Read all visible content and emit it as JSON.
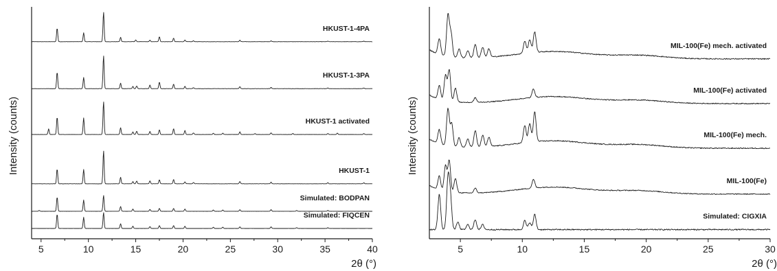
{
  "chart_data": [
    {
      "type": "line",
      "title": "",
      "xlabel": "2θ (°)",
      "ylabel": "Intensity (counts)",
      "xlim": [
        4,
        40
      ],
      "xticks": [
        5,
        10,
        15,
        20,
        25,
        30,
        35,
        40
      ],
      "grid": false,
      "legend": "none",
      "series": [
        {
          "name": "HKUST-1-4PA",
          "baseline": 0.86,
          "height": 0.13,
          "peaks": [
            [
              6.7,
              0.46
            ],
            [
              9.5,
              0.3
            ],
            [
              11.6,
              1.0
            ],
            [
              13.4,
              0.15
            ],
            [
              15.0,
              0.06
            ],
            [
              16.5,
              0.05
            ],
            [
              17.5,
              0.17
            ],
            [
              19.0,
              0.12
            ],
            [
              20.2,
              0.06
            ],
            [
              21.1,
              0.03
            ],
            [
              26.0,
              0.05
            ],
            [
              29.3,
              0.03
            ],
            [
              35.3,
              0.02
            ],
            [
              39.1,
              0.02
            ]
          ]
        },
        {
          "name": "HKUST-1-3PA",
          "baseline": 0.655,
          "height": 0.145,
          "peaks": [
            [
              6.7,
              0.5
            ],
            [
              9.5,
              0.34
            ],
            [
              11.6,
              1.0
            ],
            [
              13.4,
              0.17
            ],
            [
              14.7,
              0.07
            ],
            [
              15.1,
              0.08
            ],
            [
              16.5,
              0.11
            ],
            [
              17.5,
              0.2
            ],
            [
              19.0,
              0.14
            ],
            [
              20.2,
              0.07
            ],
            [
              21.1,
              0.03
            ],
            [
              26.0,
              0.06
            ],
            [
              29.3,
              0.04
            ],
            [
              35.3,
              0.02
            ],
            [
              39.1,
              0.02
            ]
          ]
        },
        {
          "name": "HKUST-1 activated",
          "baseline": 0.455,
          "height": 0.145,
          "peaks": [
            [
              5.8,
              0.17
            ],
            [
              6.7,
              0.53
            ],
            [
              9.5,
              0.5
            ],
            [
              11.6,
              1.0
            ],
            [
              13.4,
              0.21
            ],
            [
              14.7,
              0.08
            ],
            [
              15.1,
              0.1
            ],
            [
              16.5,
              0.09
            ],
            [
              17.5,
              0.14
            ],
            [
              19.0,
              0.18
            ],
            [
              20.2,
              0.12
            ],
            [
              21.1,
              0.05
            ],
            [
              23.2,
              0.04
            ],
            [
              24.2,
              0.04
            ],
            [
              26.0,
              0.08
            ],
            [
              27.6,
              0.03
            ],
            [
              29.3,
              0.05
            ],
            [
              31.6,
              0.03
            ],
            [
              35.3,
              0.03
            ],
            [
              36.3,
              0.04
            ],
            [
              39.1,
              0.03
            ]
          ]
        },
        {
          "name": "HKUST-1",
          "baseline": 0.24,
          "height": 0.145,
          "peaks": [
            [
              6.7,
              0.45
            ],
            [
              9.5,
              0.43
            ],
            [
              11.6,
              1.0
            ],
            [
              13.4,
              0.2
            ],
            [
              14.7,
              0.07
            ],
            [
              15.1,
              0.08
            ],
            [
              16.5,
              0.09
            ],
            [
              17.5,
              0.12
            ],
            [
              19.0,
              0.13
            ],
            [
              20.2,
              0.06
            ],
            [
              21.1,
              0.04
            ],
            [
              26.0,
              0.07
            ],
            [
              29.3,
              0.05
            ],
            [
              35.3,
              0.03
            ],
            [
              39.1,
              0.03
            ]
          ]
        },
        {
          "name": "Simulated: BODPAN",
          "baseline": 0.12,
          "height": 0.07,
          "peaks": [
            [
              4.8,
              0.05
            ],
            [
              6.7,
              0.9
            ],
            [
              9.5,
              0.7
            ],
            [
              11.6,
              1.0
            ],
            [
              13.4,
              0.3
            ],
            [
              14.7,
              0.14
            ],
            [
              16.5,
              0.12
            ],
            [
              17.5,
              0.18
            ],
            [
              19.0,
              0.18
            ],
            [
              20.2,
              0.14
            ],
            [
              23.2,
              0.08
            ],
            [
              24.2,
              0.08
            ],
            [
              26.0,
              0.1
            ],
            [
              29.3,
              0.1
            ],
            [
              32.0,
              0.05
            ],
            [
              35.3,
              0.05
            ]
          ]
        },
        {
          "name": "Simulated: FIQCEN",
          "baseline": 0.045,
          "height": 0.07,
          "peaks": [
            [
              6.7,
              0.9
            ],
            [
              9.5,
              0.7
            ],
            [
              11.6,
              1.0
            ],
            [
              13.4,
              0.3
            ],
            [
              14.7,
              0.14
            ],
            [
              16.5,
              0.12
            ],
            [
              17.5,
              0.18
            ],
            [
              19.0,
              0.18
            ],
            [
              20.2,
              0.14
            ],
            [
              23.2,
              0.08
            ],
            [
              24.2,
              0.08
            ],
            [
              26.0,
              0.1
            ],
            [
              29.3,
              0.1
            ],
            [
              32.0,
              0.05
            ],
            [
              35.3,
              0.05
            ]
          ]
        }
      ]
    },
    {
      "type": "line",
      "title": "",
      "xlabel": "2θ (°)",
      "ylabel": "Intensity (counts)",
      "xlim": [
        2.5,
        30
      ],
      "xticks": [
        5,
        10,
        15,
        20,
        25,
        30
      ],
      "grid": false,
      "legend": "none",
      "series": [
        {
          "name": "MIL-100(Fe) mech. activated",
          "baseline": 0.785,
          "height": 0.18,
          "peaks": [
            [
              3.3,
              0.38
            ],
            [
              4.0,
              1.0
            ],
            [
              4.25,
              0.55
            ],
            [
              4.9,
              0.2
            ],
            [
              5.6,
              0.17
            ],
            [
              6.2,
              0.33
            ],
            [
              6.8,
              0.25
            ],
            [
              7.3,
              0.2
            ],
            [
              10.2,
              0.3
            ],
            [
              10.6,
              0.32
            ],
            [
              11.0,
              0.5
            ]
          ]
        },
        {
          "name": "MIL-100(Fe) activated",
          "baseline": 0.59,
          "height": 0.17,
          "peaks": [
            [
              3.3,
              0.35
            ],
            [
              3.8,
              0.65
            ],
            [
              4.1,
              0.8
            ],
            [
              4.6,
              0.35
            ],
            [
              6.2,
              0.12
            ],
            [
              10.9,
              0.22
            ]
          ]
        },
        {
          "name": "MIL-100(Fe) mech.",
          "baseline": 0.395,
          "height": 0.18,
          "peaks": [
            [
              3.3,
              0.34
            ],
            [
              4.0,
              0.9
            ],
            [
              4.3,
              0.55
            ],
            [
              4.9,
              0.22
            ],
            [
              5.6,
              0.2
            ],
            [
              6.2,
              0.4
            ],
            [
              6.8,
              0.28
            ],
            [
              7.3,
              0.22
            ],
            [
              10.2,
              0.42
            ],
            [
              10.6,
              0.45
            ],
            [
              11.0,
              0.72
            ]
          ]
        },
        {
          "name": "MIL-100(Fe)",
          "baseline": 0.195,
          "height": 0.17,
          "peaks": [
            [
              3.3,
              0.35
            ],
            [
              3.8,
              0.65
            ],
            [
              4.1,
              0.8
            ],
            [
              4.6,
              0.35
            ],
            [
              6.2,
              0.12
            ],
            [
              10.9,
              0.22
            ]
          ]
        },
        {
          "name": "Simulated: CIGXIA",
          "baseline": 0.04,
          "height": 0.22,
          "peaks": [
            [
              3.3,
              0.7
            ],
            [
              4.0,
              1.0
            ],
            [
              4.2,
              0.6
            ],
            [
              4.8,
              0.15
            ],
            [
              5.6,
              0.1
            ],
            [
              6.2,
              0.2
            ],
            [
              6.8,
              0.1
            ],
            [
              10.2,
              0.18
            ],
            [
              10.6,
              0.14
            ],
            [
              11.0,
              0.3
            ]
          ]
        }
      ]
    }
  ]
}
